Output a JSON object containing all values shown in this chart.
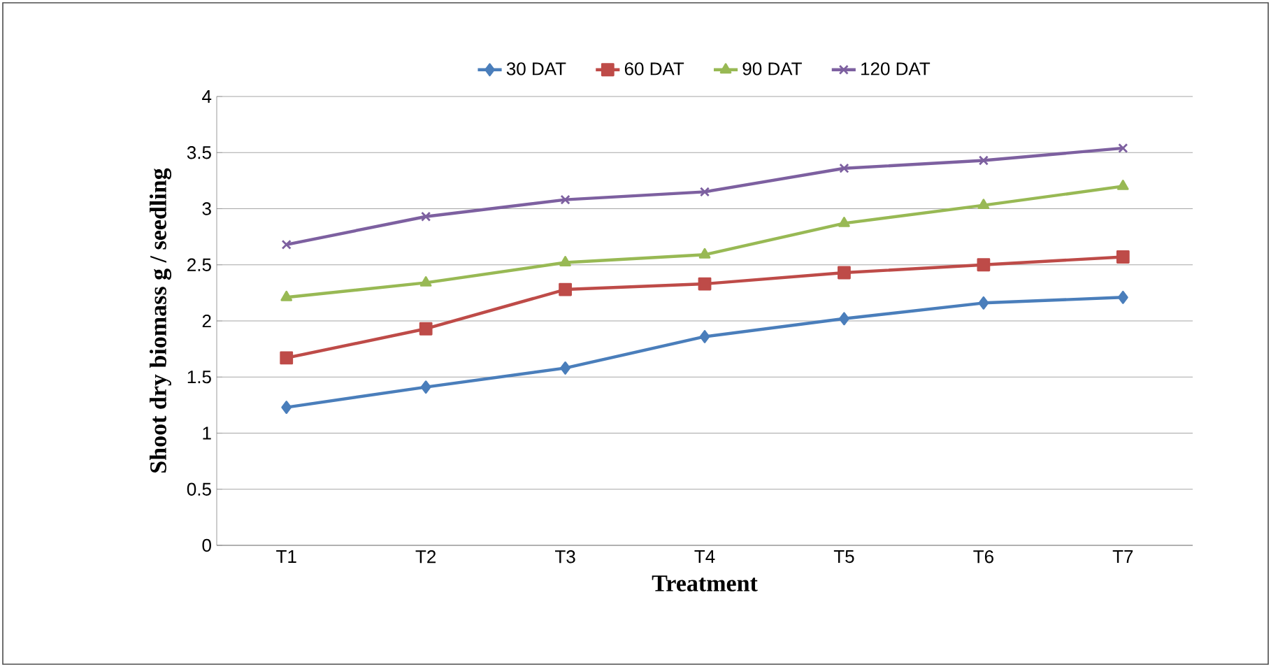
{
  "chart_data": {
    "type": "line",
    "xlabel": "Treatment",
    "ylabel": "Shoot dry biomass g / seedling",
    "categories": [
      "T1",
      "T2",
      "T3",
      "T4",
      "T5",
      "T6",
      "T7"
    ],
    "series": [
      {
        "name": "30 DAT",
        "color": "#4a7ebb",
        "marker": "diamond",
        "values": [
          1.23,
          1.41,
          1.58,
          1.86,
          2.02,
          2.16,
          2.21
        ]
      },
      {
        "name": "60 DAT",
        "color": "#be4b48",
        "marker": "square",
        "values": [
          1.67,
          1.93,
          2.28,
          2.33,
          2.43,
          2.5,
          2.57
        ]
      },
      {
        "name": "90 DAT",
        "color": "#98b954",
        "marker": "triangle",
        "values": [
          2.21,
          2.34,
          2.52,
          2.59,
          2.87,
          3.03,
          3.2
        ]
      },
      {
        "name": "120 DAT",
        "color": "#7d60a0",
        "marker": "cross",
        "values": [
          2.68,
          2.93,
          3.08,
          3.15,
          3.36,
          3.43,
          3.54
        ]
      }
    ],
    "ylim": [
      0,
      4
    ],
    "yticks": [
      0,
      0.5,
      1,
      1.5,
      2,
      2.5,
      3,
      3.5,
      4
    ],
    "grid": "y",
    "legend": "top"
  }
}
